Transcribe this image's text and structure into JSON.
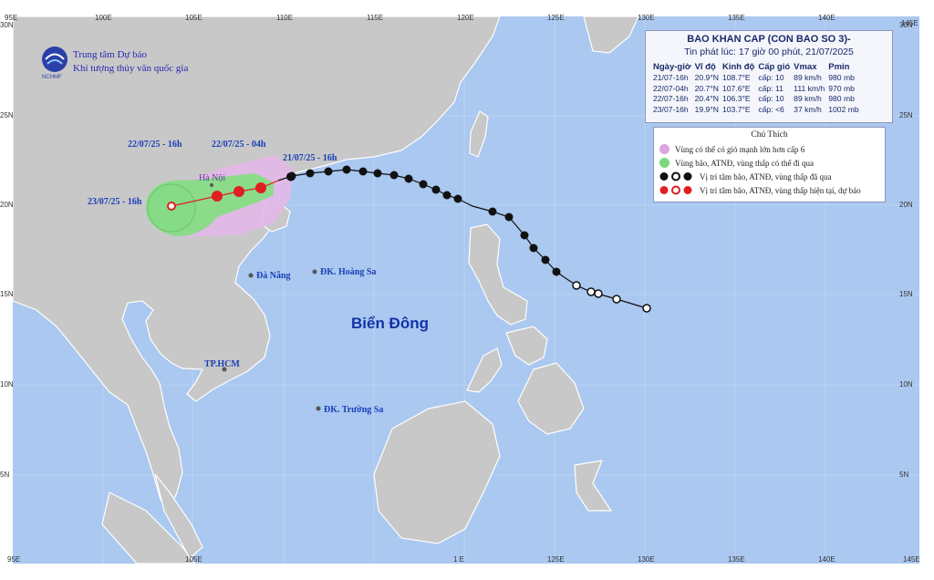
{
  "bulletin": {
    "title": "BAO KHAN CAP (CON BAO SO 3)-",
    "issued": "Tin phát lúc: 17 giờ 00 phút, 21/07/2025",
    "columns": [
      "Ngày-giờ",
      "Vĩ độ",
      "Kinh độ",
      "Cấp gió",
      "Vmax",
      "Pmin"
    ],
    "rows": [
      [
        "21/07-16h",
        "20.9°N",
        "108.7°E",
        "cấp: 10",
        "89 km/h",
        "980 mb"
      ],
      [
        "22/07-04h",
        "20.7°N",
        "107.6°E",
        "cấp: 11",
        "111 km/h",
        "970 mb"
      ],
      [
        "22/07-16h",
        "20.4°N",
        "106.3°E",
        "cấp: 10",
        "89 km/h",
        "980 mb"
      ],
      [
        "23/07-16h",
        "19.9°N",
        "103.7°E",
        "cấp: <6",
        "37 km/h",
        "1002 mb"
      ]
    ]
  },
  "organization": {
    "line1": "Trung tâm Dự báo",
    "line2": "Khí tượng thủy văn quốc gia",
    "logo_text": "NCHMF"
  },
  "legend": {
    "title": "Chú Thích",
    "items": [
      {
        "label": "Vùng có thể có gió mạnh lớn hơn cấp 6",
        "color": "#d9a6e0"
      },
      {
        "label": "Vùng bão, ATNĐ, vùng thấp có thể đi qua",
        "color": "#7ed87e"
      },
      {
        "label": "Vị trí tâm bão, ATNĐ, vùng thấp đã qua",
        "color": "#111111"
      },
      {
        "label": "Vị trí tâm bão, ATNĐ, vùng thấp hiện tại, dự báo",
        "color": "#e02020"
      }
    ]
  },
  "map": {
    "sea_label": "Biển Đông",
    "places": [
      {
        "name": "Hà Nội"
      },
      {
        "name": "Đà Nẵng"
      },
      {
        "name": "ĐK. Hoàng Sa"
      },
      {
        "name": "TP.HCM"
      },
      {
        "name": "ĐK. Trường Sa"
      }
    ],
    "forecast_labels": [
      "22/07/25 - 16h",
      "22/07/25 - 04h",
      "21/07/25 - 16h",
      "23/07/25 - 16h"
    ],
    "lon_ticks_top": [
      "95E",
      "100E",
      "105E",
      "110E",
      "115E",
      "120E",
      "125E",
      "130E",
      "135E",
      "140E",
      "145E"
    ],
    "lon_ticks_bottom": [
      "95E",
      "105E",
      "1 E",
      "125E",
      "130E",
      "135E",
      "140E",
      "145E"
    ],
    "lat_ticks": [
      "30N",
      "25N",
      "20N",
      "15N",
      "10N",
      "5N"
    ],
    "colors": {
      "sea": "#aac8f0",
      "land": "#c8c8c8",
      "wind_zone": "#e2b8e8",
      "storm_zone": "#86dc86",
      "track": "#111111",
      "forecast": "#e02020"
    }
  }
}
